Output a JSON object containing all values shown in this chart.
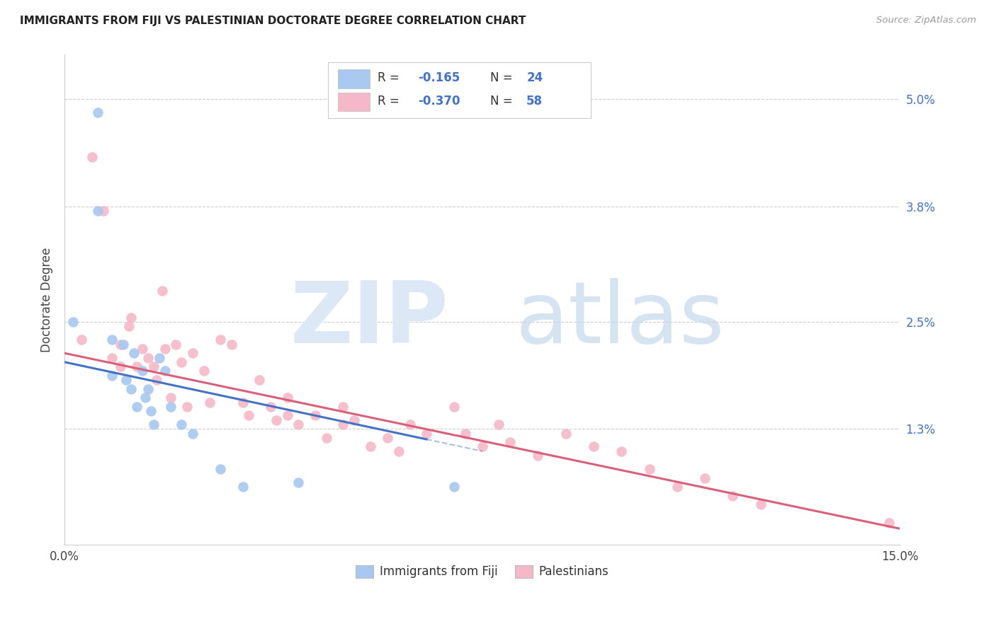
{
  "title": "IMMIGRANTS FROM FIJI VS PALESTINIAN DOCTORATE DEGREE CORRELATION CHART",
  "source": "Source: ZipAtlas.com",
  "ylabel": "Doctorate Degree",
  "ytick_labels": [
    "5.0%",
    "3.8%",
    "2.5%",
    "1.3%"
  ],
  "ytick_values": [
    5.0,
    3.8,
    2.5,
    1.3
  ],
  "xlim": [
    0.0,
    15.0
  ],
  "ylim": [
    0.0,
    5.5
  ],
  "fiji_color": "#a8c8f0",
  "pal_color": "#f5b8c8",
  "fiji_line_color": "#4472c4",
  "pal_line_color": "#d9607a",
  "fiji_line_x0": 0.0,
  "fiji_line_y0": 2.05,
  "fiji_line_x1": 7.5,
  "fiji_line_y1": 1.05,
  "fiji_line_solid_end": 6.5,
  "pal_line_x0": 0.0,
  "pal_line_y0": 2.15,
  "pal_line_x1": 15.0,
  "pal_line_y1": 0.18,
  "fiji_points_x": [
    0.15,
    0.6,
    0.6,
    0.85,
    0.85,
    1.05,
    1.1,
    1.2,
    1.25,
    1.3,
    1.4,
    1.45,
    1.5,
    1.55,
    1.6,
    1.7,
    1.8,
    1.9,
    2.1,
    2.3,
    2.8,
    3.2,
    4.2,
    7.0
  ],
  "fiji_points_y": [
    2.5,
    4.85,
    3.75,
    2.3,
    1.9,
    2.25,
    1.85,
    1.75,
    2.15,
    1.55,
    1.95,
    1.65,
    1.75,
    1.5,
    1.35,
    2.1,
    1.95,
    1.55,
    1.35,
    1.25,
    0.85,
    0.65,
    0.7,
    0.65
  ],
  "pal_points_x": [
    0.3,
    0.5,
    0.7,
    0.85,
    1.0,
    1.0,
    1.15,
    1.2,
    1.3,
    1.4,
    1.5,
    1.6,
    1.65,
    1.75,
    1.8,
    1.9,
    2.0,
    2.1,
    2.2,
    2.3,
    2.5,
    2.6,
    2.8,
    3.0,
    3.2,
    3.3,
    3.5,
    3.7,
    3.8,
    4.0,
    4.0,
    4.2,
    4.5,
    4.7,
    5.0,
    5.0,
    5.2,
    5.5,
    5.8,
    6.0,
    6.2,
    6.5,
    7.0,
    7.2,
    7.5,
    7.8,
    8.0,
    8.5,
    9.0,
    9.5,
    10.0,
    10.5,
    11.0,
    11.5,
    12.0,
    12.5,
    14.8
  ],
  "pal_points_y": [
    2.3,
    4.35,
    3.75,
    2.1,
    2.25,
    2.0,
    2.45,
    2.55,
    2.0,
    2.2,
    2.1,
    2.0,
    1.85,
    2.85,
    2.2,
    1.65,
    2.25,
    2.05,
    1.55,
    2.15,
    1.95,
    1.6,
    2.3,
    2.25,
    1.6,
    1.45,
    1.85,
    1.55,
    1.4,
    1.65,
    1.45,
    1.35,
    1.45,
    1.2,
    1.55,
    1.35,
    1.4,
    1.1,
    1.2,
    1.05,
    1.35,
    1.25,
    1.55,
    1.25,
    1.1,
    1.35,
    1.15,
    1.0,
    1.25,
    1.1,
    1.05,
    0.85,
    0.65,
    0.75,
    0.55,
    0.45,
    0.25
  ]
}
